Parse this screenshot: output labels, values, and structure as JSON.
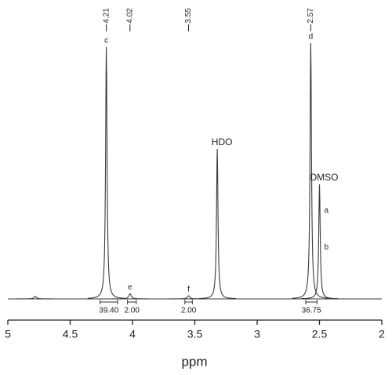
{
  "chart_data": {
    "type": "nmr",
    "x_label": "ppm",
    "xlim": [
      5,
      2
    ],
    "xticks": [
      5,
      4.5,
      4,
      3.5,
      3,
      2.5,
      2
    ],
    "ylim": [
      0,
      100
    ],
    "color": "#3a3a3a",
    "peaks": [
      {
        "ppm": 4.78,
        "height": 1
      },
      {
        "ppm": 4.21,
        "height": 98.5,
        "label": "c"
      },
      {
        "ppm": 4.02,
        "height": 2,
        "label": "e"
      },
      {
        "ppm": 3.55,
        "height": 1.2,
        "label": "f"
      },
      {
        "ppm": 3.32,
        "height": 58.6,
        "label": "HDO"
      },
      {
        "ppm": 2.57,
        "height": 100,
        "label": "d"
      },
      {
        "ppm": 2.5,
        "height": 44.8,
        "label": "DMSO",
        "side_labels": [
          "a",
          "b"
        ]
      }
    ],
    "peak_picks": [
      4.21,
      4.02,
      3.55,
      2.57
    ],
    "integrals": [
      {
        "from": 4.26,
        "to": 4.12,
        "value": 39.4,
        "label": "39.40"
      },
      {
        "from": 4.04,
        "to": 3.97,
        "value": 2,
        "label": "2.00"
      },
      {
        "from": 3.58,
        "to": 3.52,
        "value": 2,
        "label": "2.00"
      },
      {
        "from": 2.61,
        "to": 2.52,
        "value": 36.75,
        "label": "36.75"
      }
    ]
  }
}
